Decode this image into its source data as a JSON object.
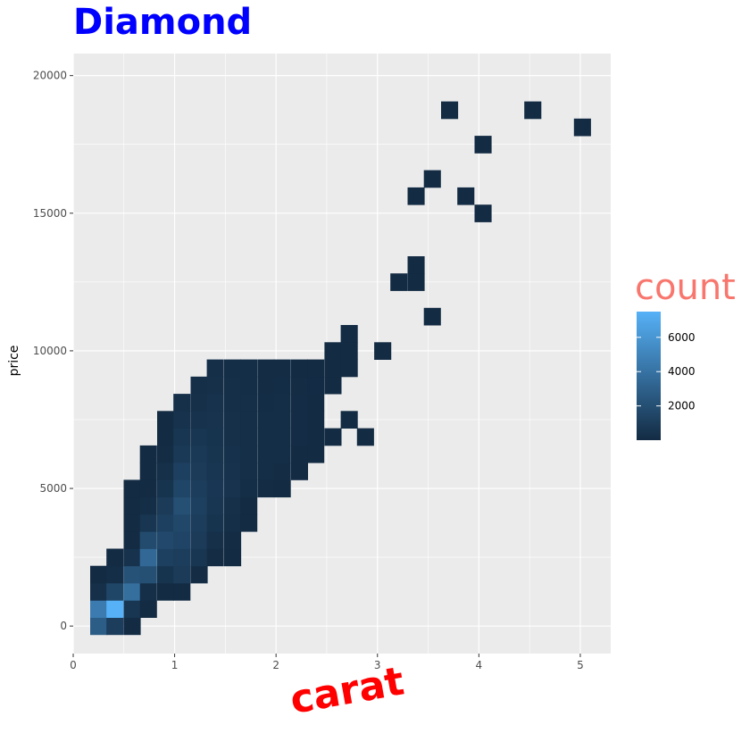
{
  "chart_data": {
    "type": "heatmap",
    "title": "Diamond",
    "xlabel": "carat",
    "ylabel": "price",
    "xlim": [
      0,
      5.3
    ],
    "ylim": [
      -1000,
      20800
    ],
    "x_ticks": [
      0,
      1,
      2,
      3,
      4,
      5
    ],
    "y_ticks": [
      0,
      5000,
      10000,
      15000,
      20000
    ],
    "bin_width": {
      "carat": 0.165,
      "price": 625
    },
    "grid": true,
    "legend": {
      "title": "count",
      "position": "right",
      "ticks": [
        2000,
        4000,
        6000
      ],
      "range": [
        1,
        7500
      ],
      "colors": {
        "low": "#132b43",
        "high": "#56b1f7"
      }
    },
    "columns": [
      {
        "x": 0.25,
        "bins": [
          [
            0,
            2800
          ],
          [
            625,
            4500
          ],
          [
            1250,
            300
          ],
          [
            1875,
            10
          ]
        ]
      },
      {
        "x": 0.41,
        "bins": [
          [
            0,
            1000
          ],
          [
            625,
            7500
          ],
          [
            1250,
            1500
          ],
          [
            1875,
            150
          ],
          [
            2500,
            10
          ]
        ]
      },
      {
        "x": 0.58,
        "bins": [
          [
            0,
            50
          ],
          [
            625,
            600
          ],
          [
            1250,
            3800
          ],
          [
            1875,
            2200
          ],
          [
            2500,
            400
          ],
          [
            3125,
            50
          ],
          [
            3750,
            5
          ],
          [
            4375,
            2
          ],
          [
            5000,
            0
          ]
        ]
      },
      {
        "x": 0.74,
        "bins": [
          [
            625,
            20
          ],
          [
            1250,
            200
          ],
          [
            1875,
            2000
          ],
          [
            2500,
            3400
          ],
          [
            3125,
            1800
          ],
          [
            3750,
            600
          ],
          [
            4375,
            150
          ],
          [
            5000,
            20
          ],
          [
            5625,
            3
          ],
          [
            6250,
            1
          ]
        ]
      },
      {
        "x": 0.91,
        "bins": [
          [
            1250,
            50
          ],
          [
            1875,
            500
          ],
          [
            2500,
            1200
          ],
          [
            3125,
            1700
          ],
          [
            3750,
            1200
          ],
          [
            4375,
            900
          ],
          [
            5000,
            500
          ],
          [
            5625,
            300
          ],
          [
            6250,
            100
          ],
          [
            6875,
            20
          ],
          [
            7500,
            10
          ]
        ]
      },
      {
        "x": 1.07,
        "bins": [
          [
            1250,
            20
          ],
          [
            1875,
            900
          ],
          [
            2500,
            1000
          ],
          [
            3125,
            1400
          ],
          [
            3750,
            1600
          ],
          [
            4375,
            2000
          ],
          [
            5000,
            1500
          ],
          [
            5625,
            1200
          ],
          [
            6250,
            800
          ],
          [
            6875,
            600
          ],
          [
            7500,
            400
          ],
          [
            8125,
            300
          ]
        ]
      },
      {
        "x": 1.24,
        "bins": [
          [
            1875,
            100
          ],
          [
            2500,
            600
          ],
          [
            3125,
            900
          ],
          [
            3750,
            1000
          ],
          [
            4375,
            1200
          ],
          [
            5000,
            1000
          ],
          [
            5625,
            900
          ],
          [
            6250,
            800
          ],
          [
            6875,
            600
          ],
          [
            7500,
            400
          ],
          [
            8125,
            300
          ],
          [
            8750,
            200
          ]
        ]
      },
      {
        "x": 1.4,
        "bins": [
          [
            2500,
            100
          ],
          [
            3125,
            300
          ],
          [
            3750,
            500
          ],
          [
            4375,
            600
          ],
          [
            5000,
            700
          ],
          [
            5625,
            600
          ],
          [
            6250,
            550
          ],
          [
            6875,
            500
          ],
          [
            7500,
            450
          ],
          [
            8125,
            400
          ],
          [
            8750,
            300
          ],
          [
            9375,
            250
          ]
        ]
      },
      {
        "x": 1.57,
        "bins": [
          [
            2500,
            20
          ],
          [
            3125,
            100
          ],
          [
            3750,
            200
          ],
          [
            4375,
            300
          ],
          [
            5000,
            450
          ],
          [
            5625,
            400
          ],
          [
            6250,
            350
          ],
          [
            6875,
            300
          ],
          [
            7500,
            300
          ],
          [
            8125,
            250
          ],
          [
            8750,
            200
          ],
          [
            9375,
            150
          ]
        ]
      },
      {
        "x": 1.73,
        "bins": [
          [
            3750,
            20
          ],
          [
            4375,
            50
          ],
          [
            5000,
            150
          ],
          [
            5625,
            200
          ],
          [
            6250,
            250
          ],
          [
            6875,
            250
          ],
          [
            7500,
            200
          ],
          [
            8125,
            200
          ],
          [
            8750,
            150
          ],
          [
            9375,
            150
          ]
        ]
      },
      {
        "x": 1.9,
        "bins": [
          [
            5000,
            100
          ],
          [
            5625,
            150
          ],
          [
            6250,
            150
          ],
          [
            6875,
            150
          ],
          [
            7500,
            150
          ],
          [
            8125,
            120
          ],
          [
            8750,
            100
          ],
          [
            9375,
            100
          ]
        ]
      },
      {
        "x": 2.06,
        "bins": [
          [
            5000,
            50
          ],
          [
            5625,
            100
          ],
          [
            6250,
            150
          ],
          [
            6875,
            150
          ],
          [
            7500,
            150
          ],
          [
            8125,
            150
          ],
          [
            8750,
            120
          ],
          [
            9375,
            100
          ]
        ]
      },
      {
        "x": 2.23,
        "bins": [
          [
            5625,
            20
          ],
          [
            6250,
            50
          ],
          [
            6875,
            80
          ],
          [
            7500,
            80
          ],
          [
            8125,
            80
          ],
          [
            8750,
            60
          ],
          [
            9375,
            50
          ]
        ]
      },
      {
        "x": 2.39,
        "bins": [
          [
            6250,
            20
          ],
          [
            6875,
            30
          ],
          [
            7500,
            30
          ],
          [
            8125,
            30
          ],
          [
            8750,
            25
          ],
          [
            9375,
            20
          ]
        ]
      },
      {
        "x": 2.56,
        "bins": [
          [
            6875,
            10
          ],
          [
            8750,
            10
          ],
          [
            9375,
            10
          ],
          [
            10000,
            10
          ]
        ]
      },
      {
        "x": 2.72,
        "bins": [
          [
            7500,
            3
          ],
          [
            9375,
            5
          ],
          [
            10000,
            5
          ],
          [
            10625,
            3
          ]
        ]
      },
      {
        "x": 2.88,
        "bins": [
          [
            6875,
            2
          ]
        ]
      },
      {
        "x": 3.05,
        "bins": [
          [
            10000,
            2
          ]
        ]
      },
      {
        "x": 3.21,
        "bins": [
          [
            12500,
            1
          ]
        ]
      },
      {
        "x": 3.38,
        "bins": [
          [
            12500,
            1
          ],
          [
            13125,
            1
          ],
          [
            15625,
            1
          ]
        ]
      },
      {
        "x": 3.54,
        "bins": [
          [
            11250,
            1
          ],
          [
            16250,
            1
          ]
        ]
      },
      {
        "x": 3.71,
        "bins": [
          [
            18750,
            1
          ]
        ]
      },
      {
        "x": 3.87,
        "bins": [
          [
            15625,
            1
          ]
        ]
      },
      {
        "x": 4.04,
        "bins": [
          [
            15000,
            1
          ],
          [
            17500,
            1
          ]
        ]
      },
      {
        "x": 4.53,
        "bins": [
          [
            18750,
            1
          ]
        ]
      },
      {
        "x": 5.02,
        "bins": [
          [
            18125,
            1
          ]
        ]
      }
    ]
  }
}
